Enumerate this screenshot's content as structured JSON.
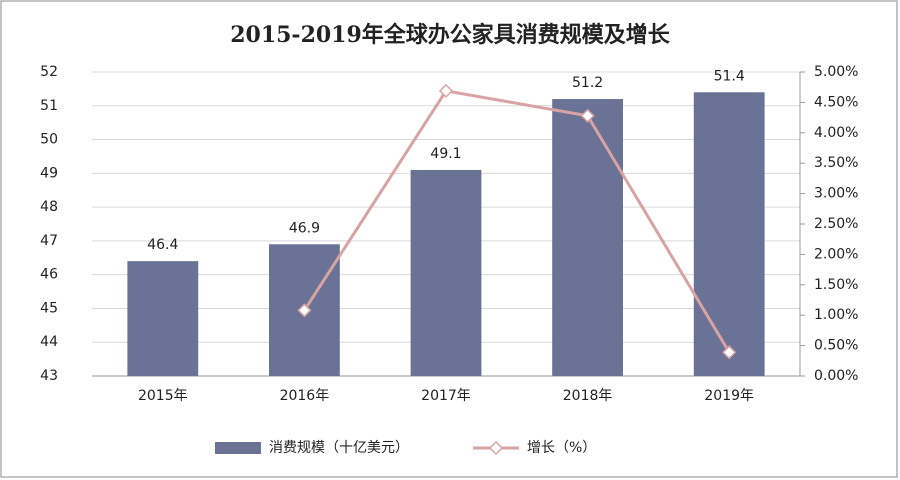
{
  "chart_data": {
    "type": "bar",
    "title": "2015-2019年全球办公家具消费规模及增长",
    "categories": [
      "2015年",
      "2016年",
      "2017年",
      "2018年",
      "2019年"
    ],
    "series": [
      {
        "name": "消费规模（十亿美元）",
        "type": "bar",
        "color": "#6a7395",
        "values": [
          46.4,
          46.9,
          49.1,
          51.2,
          51.4
        ]
      },
      {
        "name": "增长（%）",
        "type": "line",
        "axis": "y2",
        "color": "#d9a3a3",
        "values": [
          null,
          1.08,
          4.69,
          4.28,
          0.39
        ]
      }
    ],
    "ylim": [
      43,
      52
    ],
    "yticks": [
      43,
      44,
      45,
      46,
      47,
      48,
      49,
      50,
      51,
      52
    ],
    "y2lim": [
      0,
      5
    ],
    "y2ticks": [
      {
        "value": 0,
        "label": "0.00%"
      },
      {
        "value": 0.5,
        "label": "0.50%"
      },
      {
        "value": 1,
        "label": "1.00%"
      },
      {
        "value": 1.5,
        "label": "1.50%"
      },
      {
        "value": 2,
        "label": "2.00%"
      },
      {
        "value": 2.5,
        "label": "2.50%"
      },
      {
        "value": 3,
        "label": "3.00%"
      },
      {
        "value": 3.5,
        "label": "3.50%"
      },
      {
        "value": 4,
        "label": "4.00%"
      },
      {
        "value": 4.5,
        "label": "4.50%"
      },
      {
        "value": 5,
        "label": "5.00%"
      }
    ],
    "grid": true,
    "legend": "bottom"
  }
}
